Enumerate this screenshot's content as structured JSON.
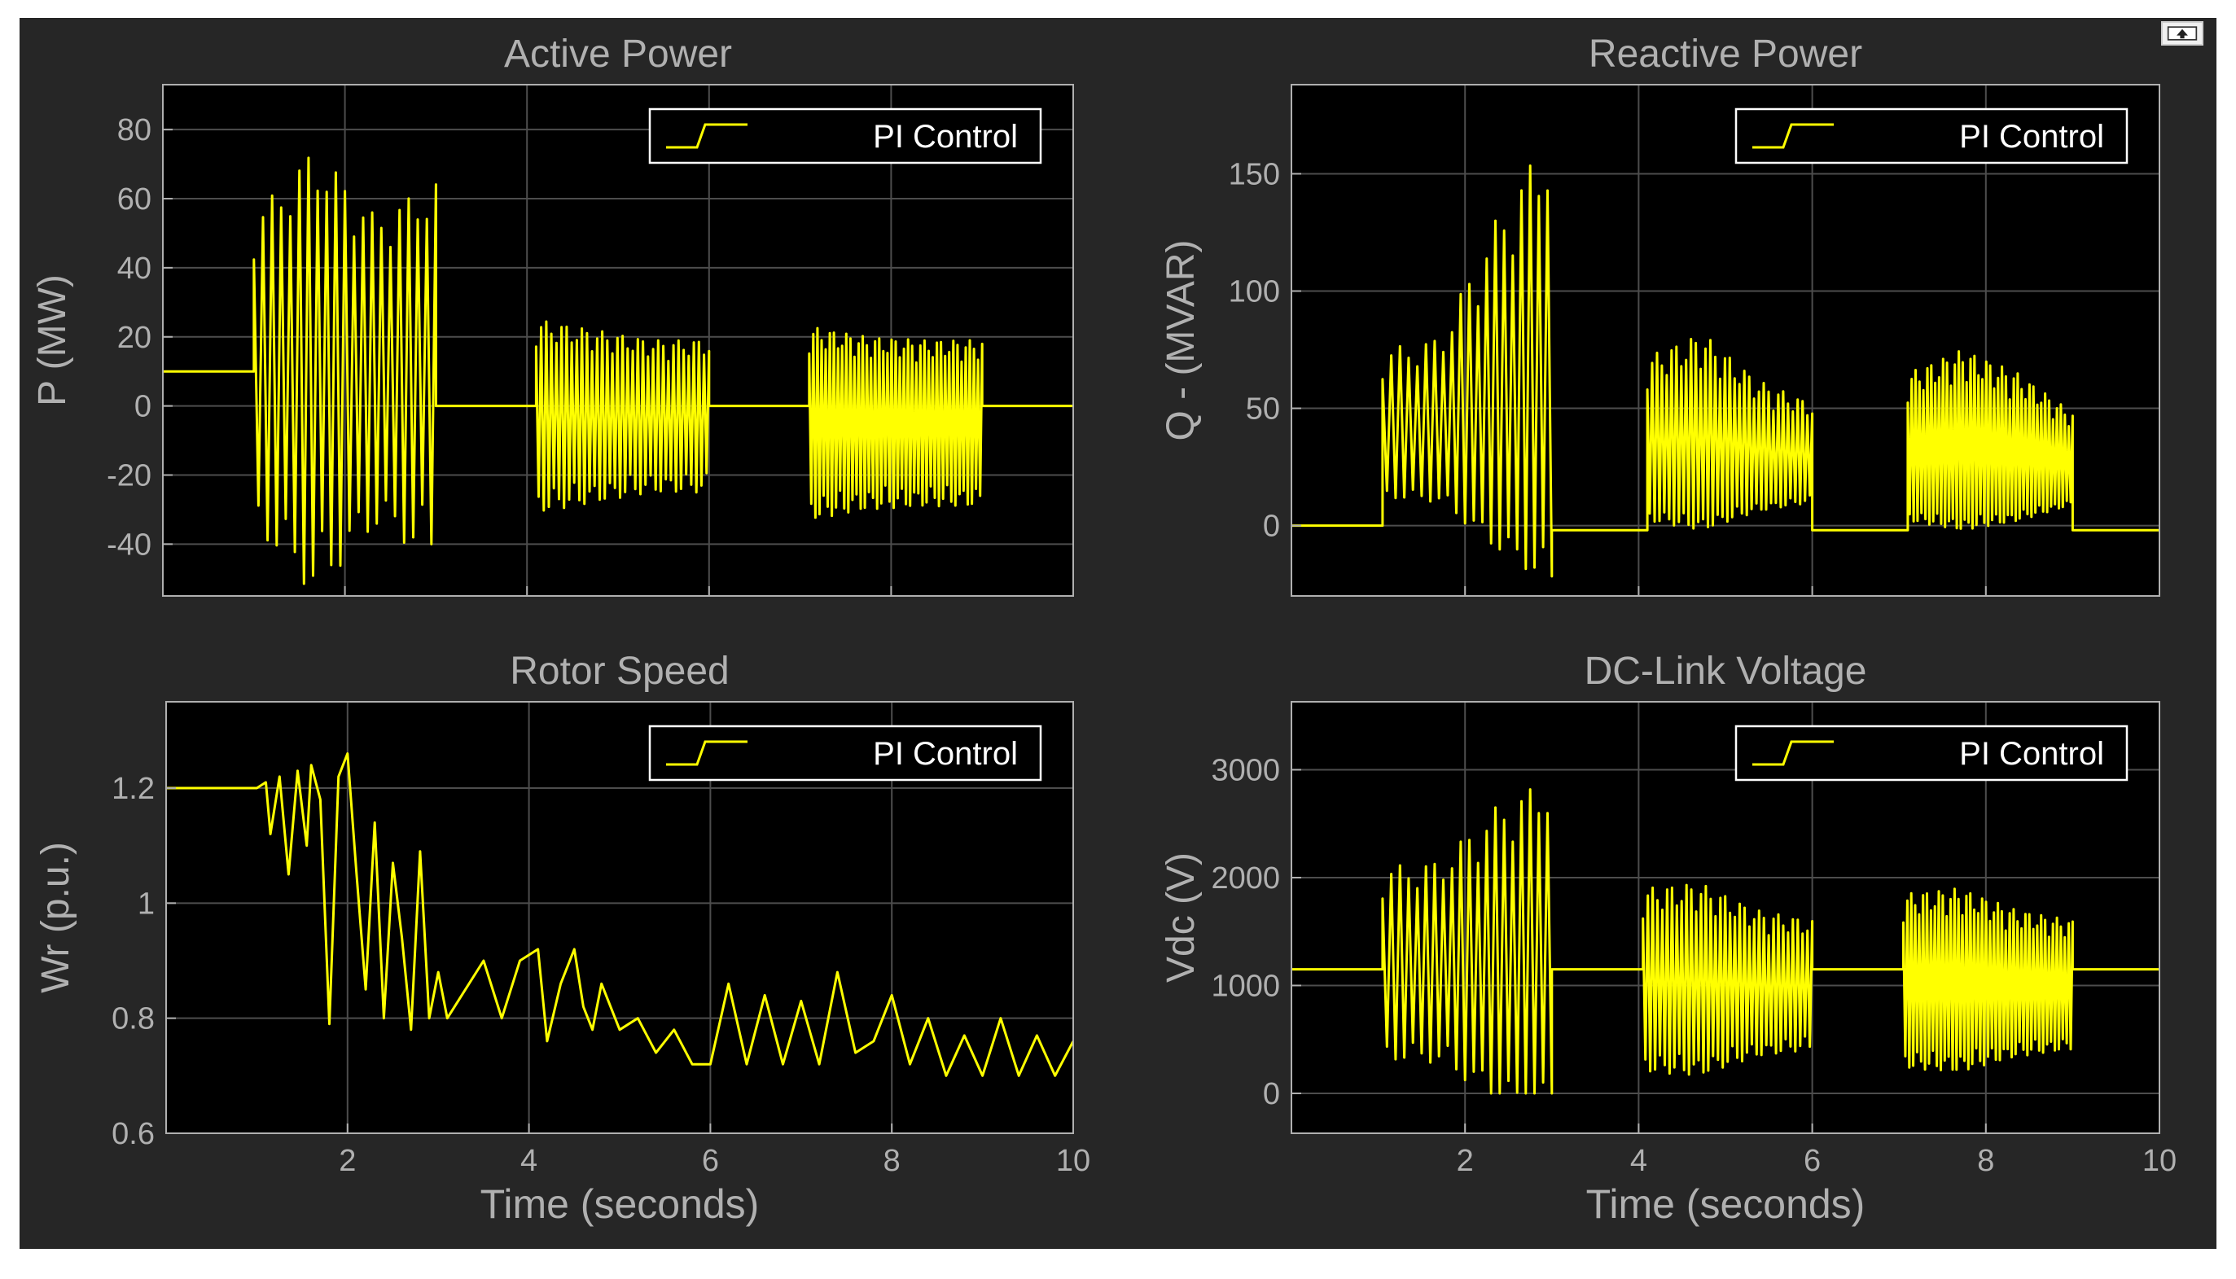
{
  "colors": {
    "figure_bg": "#262626",
    "axes_bg": "#000000",
    "axes_fg": "#b0b0b0",
    "grid": "#4d4d4d",
    "series": "#ffff00"
  },
  "toolbar": {
    "icon": "undock-arrow-icon"
  },
  "chart_data": [
    {
      "type": "line",
      "title": "Active Power",
      "ylabel": "P (MW)",
      "xlabel": "",
      "xlim": [
        0,
        10
      ],
      "ylim": [
        -55,
        93
      ],
      "xticks": [
        2,
        4,
        6,
        8,
        10
      ],
      "xtick_labels": [
        "",
        "",
        "",
        "",
        ""
      ],
      "yticks": [
        80,
        60,
        40,
        20,
        0,
        -20,
        -40
      ],
      "ytick_labels": [
        "80",
        "60",
        "40",
        "20",
        "0",
        "-20",
        "-40"
      ],
      "grid": true,
      "legend": {
        "position": "top-right",
        "entries": [
          "PI Control"
        ]
      },
      "series": [
        {
          "name": "PI Control",
          "segments": [
            {
              "t0": 0,
              "t1": 1,
              "kind": "flat",
              "base": 10
            },
            {
              "t0": 1,
              "t1": 3,
              "kind": "osc",
              "base": 10,
              "amp": [
                45,
                65,
                45,
                55
              ],
              "freq": 10,
              "skew": 0
            },
            {
              "t0": 3,
              "t1": 4.1,
              "kind": "flat",
              "base": 0
            },
            {
              "t0": 4.1,
              "t1": 6,
              "kind": "osc",
              "base": -3,
              "amp": [
                28,
                25,
                22,
                22
              ],
              "freq": 18,
              "skew": 0
            },
            {
              "t0": 6,
              "t1": 7.1,
              "kind": "flat",
              "base": 0
            },
            {
              "t0": 7.1,
              "t1": 9,
              "kind": "osc",
              "base": -5,
              "amp": [
                28,
                25,
                24,
                24
              ],
              "freq": 22,
              "skew": 0
            },
            {
              "t0": 9,
              "t1": 10,
              "kind": "flat",
              "base": 0
            }
          ]
        }
      ]
    },
    {
      "type": "line",
      "title": "Reactive Power",
      "ylabel": "Q - (MVAR)",
      "xlabel": "",
      "xlim": [
        0,
        10
      ],
      "ylim": [
        -30,
        188
      ],
      "xticks": [
        2,
        4,
        6,
        8,
        10
      ],
      "xtick_labels": [
        "",
        "",
        "",
        "",
        ""
      ],
      "yticks": [
        150,
        100,
        50,
        0
      ],
      "ytick_labels": [
        "150",
        "100",
        "50",
        "0"
      ],
      "grid": true,
      "legend": {
        "position": "top-right",
        "entries": [
          "PI Control"
        ]
      },
      "series": [
        {
          "name": "PI Control",
          "segments": [
            {
              "t0": 0,
              "t1": 1.05,
              "kind": "flat",
              "base": 0
            },
            {
              "t0": 1.05,
              "t1": 3,
              "kind": "osc",
              "base": 30,
              "amp": [
                45,
                50,
                100,
                140
              ],
              "freq": 10,
              "skew": 0.6
            },
            {
              "t0": 3,
              "t1": 4.1,
              "kind": "flat",
              "base": -2
            },
            {
              "t0": 4.1,
              "t1": 6,
              "kind": "osc",
              "base": 22,
              "amp": [
                50,
                60,
                40,
                30
              ],
              "freq": 18,
              "skew": 0.6
            },
            {
              "t0": 6,
              "t1": 7.1,
              "kind": "flat",
              "base": -2
            },
            {
              "t0": 7.1,
              "t1": 9,
              "kind": "osc",
              "base": 20,
              "amp": [
                45,
                55,
                45,
                28
              ],
              "freq": 22,
              "skew": 0.6
            },
            {
              "t0": 9,
              "t1": 10,
              "kind": "flat",
              "base": -2
            }
          ]
        }
      ]
    },
    {
      "type": "line",
      "title": "Rotor Speed",
      "ylabel": "Wr (p.u.)",
      "xlabel": "Time (seconds)",
      "xlim": [
        0,
        10
      ],
      "ylim": [
        0.6,
        1.35
      ],
      "xticks": [
        2,
        4,
        6,
        8,
        10
      ],
      "xtick_labels": [
        "2",
        "4",
        "6",
        "8",
        "10"
      ],
      "yticks": [
        1.2,
        1,
        0.8,
        0.6
      ],
      "ytick_labels": [
        "1.2",
        "1",
        "0.8",
        "0.6"
      ],
      "grid": true,
      "legend": {
        "position": "top-right",
        "entries": [
          "PI Control"
        ]
      },
      "series": [
        {
          "name": "PI Control",
          "x": [
            0,
            1.0,
            1.1,
            1.15,
            1.25,
            1.35,
            1.45,
            1.55,
            1.6,
            1.7,
            1.8,
            1.9,
            2.0,
            2.1,
            2.2,
            2.3,
            2.4,
            2.5,
            2.6,
            2.7,
            2.8,
            2.9,
            3.0,
            3.1,
            3.3,
            3.5,
            3.7,
            3.9,
            4.1,
            4.2,
            4.35,
            4.5,
            4.6,
            4.7,
            4.8,
            5.0,
            5.2,
            5.4,
            5.6,
            5.8,
            6.0,
            6.2,
            6.4,
            6.6,
            6.8,
            7.0,
            7.2,
            7.4,
            7.6,
            7.8,
            8.0,
            8.2,
            8.4,
            8.6,
            8.8,
            9.0,
            9.2,
            9.4,
            9.6,
            9.8,
            10.0
          ],
          "y": [
            1.2,
            1.2,
            1.21,
            1.12,
            1.22,
            1.05,
            1.23,
            1.1,
            1.24,
            1.18,
            0.79,
            1.22,
            1.26,
            1.05,
            0.85,
            1.14,
            0.8,
            1.07,
            0.94,
            0.78,
            1.09,
            0.8,
            0.88,
            0.8,
            0.85,
            0.9,
            0.8,
            0.9,
            0.92,
            0.76,
            0.86,
            0.92,
            0.82,
            0.78,
            0.86,
            0.78,
            0.8,
            0.74,
            0.78,
            0.72,
            0.72,
            0.86,
            0.72,
            0.84,
            0.72,
            0.83,
            0.72,
            0.88,
            0.74,
            0.76,
            0.84,
            0.72,
            0.8,
            0.7,
            0.77,
            0.7,
            0.8,
            0.7,
            0.77,
            0.7,
            0.76
          ]
        }
      ]
    },
    {
      "type": "line",
      "title": "DC-Link Voltage",
      "ylabel": "Vdc (V)",
      "xlabel": "Time (seconds)",
      "xlim": [
        0,
        10
      ],
      "ylim": [
        -370,
        3630
      ],
      "xticks": [
        2,
        4,
        6,
        8,
        10
      ],
      "xtick_labels": [
        "2",
        "4",
        "6",
        "8",
        "10"
      ],
      "yticks": [
        3000,
        2000,
        1000,
        0
      ],
      "ytick_labels": [
        "3000",
        "2000",
        "1000",
        "0"
      ],
      "grid": true,
      "legend": {
        "position": "top-right",
        "entries": [
          "PI Control"
        ]
      },
      "series": [
        {
          "name": "PI Control",
          "segments": [
            {
              "t0": 0,
              "t1": 1.05,
              "kind": "flat",
              "base": 1150
            },
            {
              "t0": 1.05,
              "t1": 3,
              "kind": "osc",
              "base": 1050,
              "amp": [
                1050,
                1100,
                1600,
                1900
              ],
              "freq": 10,
              "skew": 0.3,
              "floor": 0
            },
            {
              "t0": 3,
              "t1": 4.05,
              "kind": "flat",
              "base": 1150
            },
            {
              "t0": 4.05,
              "t1": 6,
              "kind": "osc",
              "base": 900,
              "amp": [
                1000,
                1050,
                800,
                700
              ],
              "freq": 18,
              "skew": 0.3,
              "floor": 0
            },
            {
              "t0": 6,
              "t1": 7.05,
              "kind": "flat",
              "base": 1150
            },
            {
              "t0": 7.05,
              "t1": 9,
              "kind": "osc",
              "base": 900,
              "amp": [
                950,
                1000,
                800,
                700
              ],
              "freq": 22,
              "skew": 0.3,
              "floor": 0
            },
            {
              "t0": 9,
              "t1": 10,
              "kind": "flat",
              "base": 1150
            }
          ]
        }
      ]
    }
  ]
}
